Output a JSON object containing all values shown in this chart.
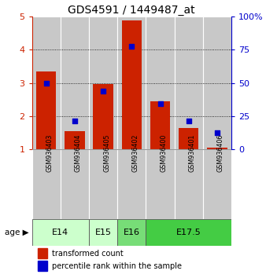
{
  "title": "GDS4591 / 1449487_at",
  "samples": [
    "GSM936403",
    "GSM936404",
    "GSM936405",
    "GSM936402",
    "GSM936400",
    "GSM936401",
    "GSM936406"
  ],
  "red_values": [
    3.35,
    1.55,
    2.98,
    4.88,
    2.45,
    1.65,
    1.05
  ],
  "blue_values": [
    3.0,
    1.85,
    2.75,
    4.1,
    2.38,
    1.85,
    1.5
  ],
  "age_groups": [
    {
      "label": "E14",
      "start": 0,
      "end": 2,
      "color": "#ccffcc"
    },
    {
      "label": "E15",
      "start": 2,
      "end": 3,
      "color": "#ccffcc"
    },
    {
      "label": "E16",
      "start": 3,
      "end": 4,
      "color": "#77dd77"
    },
    {
      "label": "E17.5",
      "start": 4,
      "end": 7,
      "color": "#44cc44"
    }
  ],
  "ylim": [
    1,
    5
  ],
  "yticks": [
    1,
    2,
    3,
    4,
    5
  ],
  "y2lim": [
    0,
    100
  ],
  "y2ticks": [
    0,
    25,
    50,
    75,
    100
  ],
  "bar_color": "#cc2200",
  "dot_color": "#0000cc",
  "title_fontsize": 10,
  "axis_color_left": "#cc2200",
  "axis_color_right": "#0000cc",
  "background_color": "#ffffff",
  "bar_bg_color": "#c8c8c8",
  "grid_yticks": [
    2,
    3,
    4
  ]
}
